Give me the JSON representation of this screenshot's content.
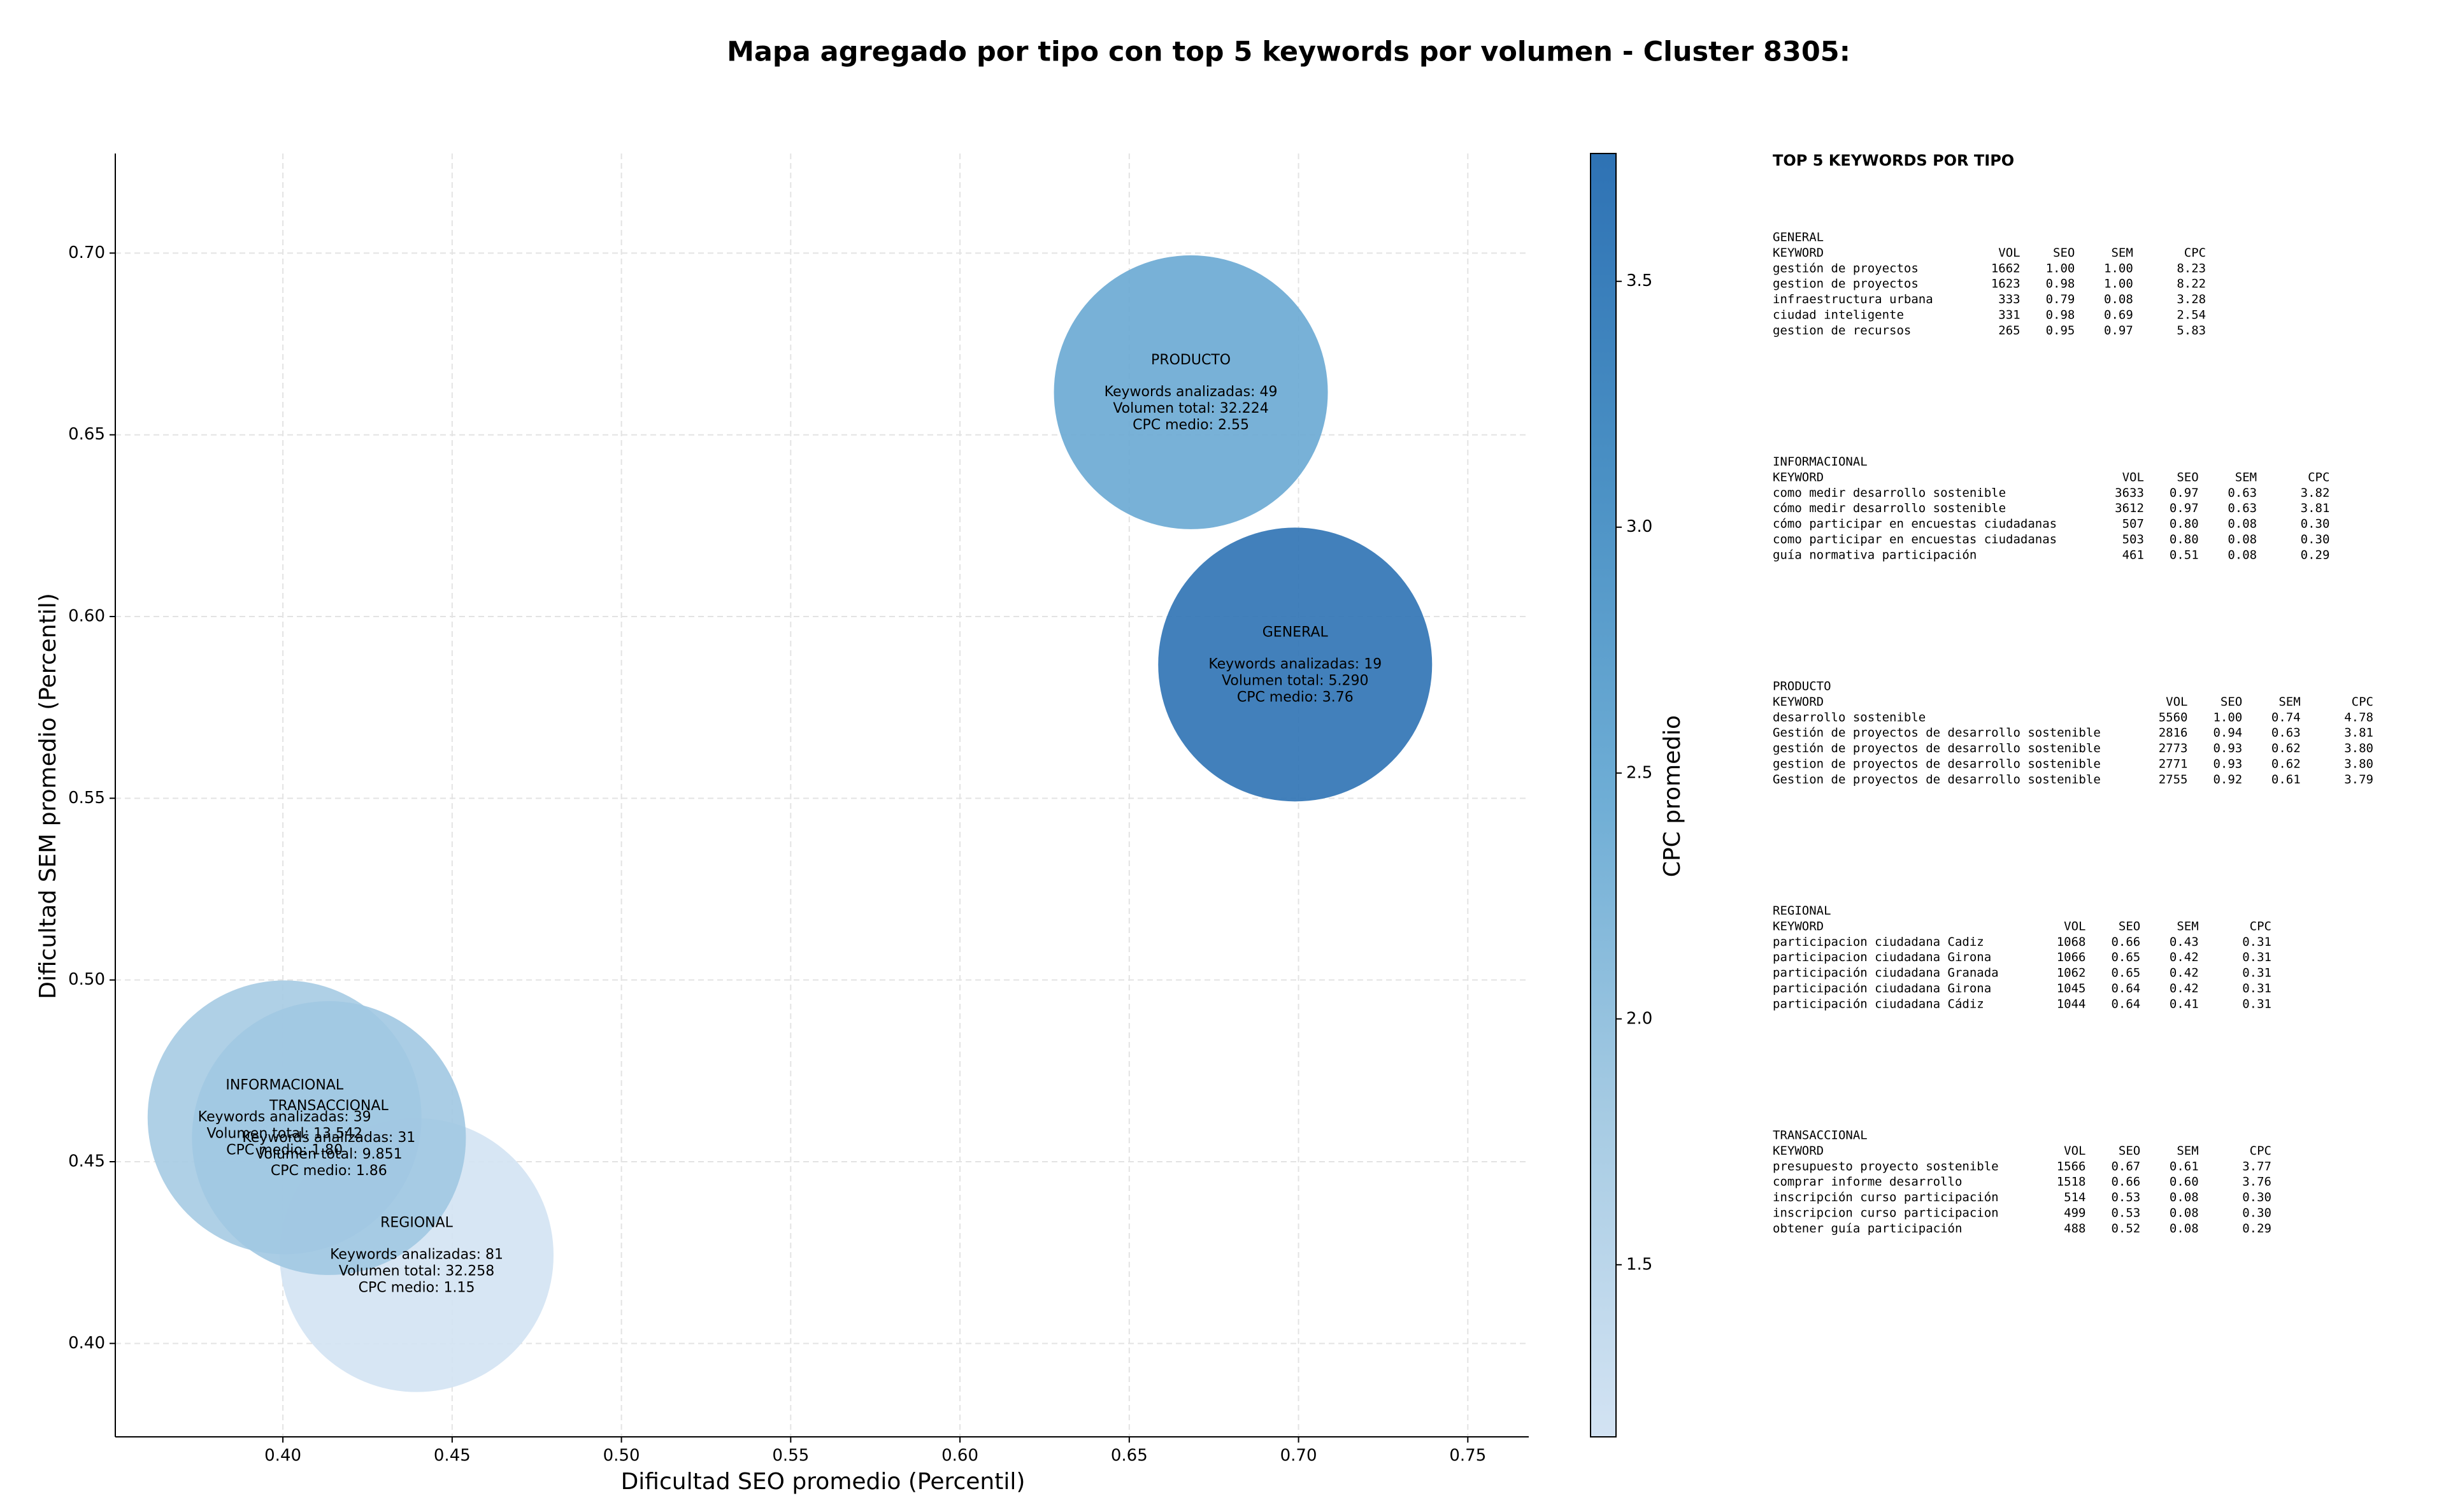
{
  "chart_data": {
    "type": "bubble",
    "title": "Mapa agregado por tipo con top 5 keywords por volumen - Cluster 8305:",
    "x_label": "Dificultad SEO promedio (Percentil)",
    "y_label": "Dificultad SEM promedio (Percentil)",
    "colorbar_label": "CPC promedio",
    "xlim": [
      0.3505,
      0.768
    ],
    "ylim": [
      0.3743,
      0.7274
    ],
    "xticks": [
      {
        "value": 0.4,
        "label": "0.40"
      },
      0.45,
      {
        "value": 0.5,
        "label": "0.50"
      },
      0.55,
      {
        "value": 0.6,
        "label": "0.60"
      },
      0.65,
      {
        "value": 0.7,
        "label": "0.70"
      },
      0.75
    ],
    "yticks": [
      {
        "value": 0.4,
        "label": "0.40"
      },
      0.45,
      {
        "value": 0.5,
        "label": "0.50"
      },
      0.55,
      {
        "value": 0.6,
        "label": "0.60"
      },
      0.65,
      {
        "value": 0.7,
        "label": "0.70"
      }
    ],
    "clim": [
      1.15,
      3.76
    ],
    "cticks": [
      1.5,
      {
        "value": 2,
        "label": "2.0"
      },
      2.5,
      {
        "value": 3,
        "label": "3.0"
      },
      3.5
    ],
    "colormap": [
      "#d3e3f3",
      "#a6cbe3",
      "#6eadd5",
      "#4a90c4",
      "#2e72b4"
    ],
    "grid": true,
    "points": [
      {
        "name": "REGIONAL",
        "x": 0.4395,
        "y": 0.4243,
        "cpc": 1.15,
        "annotation": [
          "Keywords analizadas: 81",
          "Volumen total: 32.258",
          "CPC medio: 1.15"
        ]
      },
      {
        "name": "INFORMACIONAL",
        "x": 0.4005,
        "y": 0.4622,
        "cpc": 1.8,
        "annotation": [
          "Keywords analizadas: 39",
          "Volumen total: 13.542",
          "CPC medio: 1.80"
        ]
      },
      {
        "name": "TRANSACCIONAL",
        "x": 0.4136,
        "y": 0.4565,
        "cpc": 1.86,
        "annotation": [
          "Keywords analizadas: 31",
          "Volumen total: 9.851",
          "CPC medio: 1.86"
        ]
      },
      {
        "name": "PRODUCTO",
        "x": 0.6682,
        "y": 0.6617,
        "cpc": 2.55,
        "annotation": [
          "Keywords analizadas: 49",
          "Volumen total: 32.224",
          "CPC medio: 2.55"
        ]
      },
      {
        "name": "GENERAL",
        "x": 0.699,
        "y": 0.5868,
        "cpc": 3.76,
        "annotation": [
          "Keywords analizadas: 19",
          "Volumen total: 5.290",
          "CPC medio: 3.76"
        ]
      }
    ]
  },
  "keyword_panel": {
    "title": "TOP 5 KEYWORDS POR TIPO",
    "groups": [
      {
        "name": "GENERAL",
        "header": [
          "KEYWORD",
          "VOL",
          "SEO",
          "SEM",
          "CPC"
        ],
        "rows": [
          [
            "gestión de proyectos",
            "1662",
            "1.00",
            "1.00",
            "8.23"
          ],
          [
            "gestion de proyectos",
            "1623",
            "0.98",
            "1.00",
            "8.22"
          ],
          [
            "infraestructura urbana",
            "333",
            "0.79",
            "0.08",
            "3.28"
          ],
          [
            "ciudad inteligente",
            "331",
            "0.98",
            "0.69",
            "2.54"
          ],
          [
            "gestion de recursos",
            "265",
            "0.95",
            "0.97",
            "5.83"
          ]
        ]
      },
      {
        "name": "INFORMACIONAL",
        "header": [
          "KEYWORD",
          "VOL",
          "SEO",
          "SEM",
          "CPC"
        ],
        "rows": [
          [
            "como medir desarrollo sostenible",
            "3633",
            "0.97",
            "0.63",
            "3.82"
          ],
          [
            "cómo medir desarrollo sostenible",
            "3612",
            "0.97",
            "0.63",
            "3.81"
          ],
          [
            "cómo participar en encuestas ciudadanas",
            "507",
            "0.80",
            "0.08",
            "0.30"
          ],
          [
            "como participar en encuestas ciudadanas",
            "503",
            "0.80",
            "0.08",
            "0.30"
          ],
          [
            "guía normativa participación",
            "461",
            "0.51",
            "0.08",
            "0.29"
          ]
        ]
      },
      {
        "name": "PRODUCTO",
        "header": [
          "KEYWORD",
          "VOL",
          "SEO",
          "SEM",
          "CPC"
        ],
        "rows": [
          [
            "desarrollo sostenible",
            "5560",
            "1.00",
            "0.74",
            "4.78"
          ],
          [
            "Gestión de proyectos de desarrollo sostenible",
            "2816",
            "0.94",
            "0.63",
            "3.81"
          ],
          [
            "gestión de proyectos de desarrollo sostenible",
            "2773",
            "0.93",
            "0.62",
            "3.80"
          ],
          [
            "gestion de proyectos de desarrollo sostenible",
            "2771",
            "0.93",
            "0.62",
            "3.80"
          ],
          [
            "Gestion de proyectos de desarrollo sostenible",
            "2755",
            "0.92",
            "0.61",
            "3.79"
          ]
        ]
      },
      {
        "name": "REGIONAL",
        "header": [
          "KEYWORD",
          "VOL",
          "SEO",
          "SEM",
          "CPC"
        ],
        "rows": [
          [
            "participacion ciudadana Cadiz",
            "1068",
            "0.66",
            "0.43",
            "0.31"
          ],
          [
            "participacion ciudadana Girona",
            "1066",
            "0.65",
            "0.42",
            "0.31"
          ],
          [
            "participación ciudadana Granada",
            "1062",
            "0.65",
            "0.42",
            "0.31"
          ],
          [
            "participación ciudadana Girona",
            "1045",
            "0.64",
            "0.42",
            "0.31"
          ],
          [
            "participación ciudadana Cádiz",
            "1044",
            "0.64",
            "0.41",
            "0.31"
          ]
        ]
      },
      {
        "name": "TRANSACCIONAL",
        "header": [
          "KEYWORD",
          "VOL",
          "SEO",
          "SEM",
          "CPC"
        ],
        "rows": [
          [
            "presupuesto proyecto sostenible",
            "1566",
            "0.67",
            "0.61",
            "3.77"
          ],
          [
            "comprar informe desarrollo",
            "1518",
            "0.66",
            "0.60",
            "3.76"
          ],
          [
            "inscripción curso participación",
            "514",
            "0.53",
            "0.08",
            "0.30"
          ],
          [
            "inscripcion curso participacion",
            "499",
            "0.53",
            "0.08",
            "0.30"
          ],
          [
            "obtener guía participación",
            "488",
            "0.52",
            "0.08",
            "0.29"
          ]
        ]
      }
    ]
  }
}
